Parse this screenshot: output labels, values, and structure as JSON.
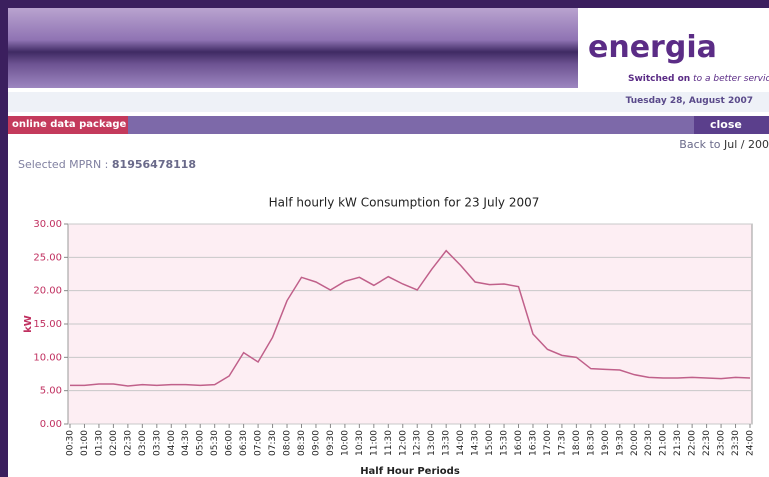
{
  "header": {
    "logo": "energia",
    "tagline_bold": "Switched on",
    "tagline_rest": "to a better service",
    "date": "Tuesday 28, August 2007"
  },
  "nav": {
    "tab": "online data package",
    "close": "close",
    "back_label": "Back to",
    "back_link": "Jul / 200"
  },
  "mprn": {
    "label": "Selected MPRN :",
    "value": "81956478118"
  },
  "chart_data": {
    "type": "line",
    "title": "Half hourly kW Consumption for 23 July 2007",
    "x_label": "Half Hour Periods",
    "y_label": "kW",
    "color": "#c0608a",
    "grid": true,
    "categories": [
      "00:30",
      "01:00",
      "01:30",
      "02:00",
      "02:30",
      "03:00",
      "03:30",
      "04:00",
      "04:30",
      "05:00",
      "05:30",
      "06:00",
      "06:30",
      "07:00",
      "07:30",
      "08:00",
      "08:30",
      "09:00",
      "09:30",
      "10:00",
      "10:30",
      "11:00",
      "11:30",
      "12:00",
      "12:30",
      "13:00",
      "13:30",
      "14:00",
      "14:30",
      "15:00",
      "15:30",
      "16:00",
      "16:30",
      "17:00",
      "17:30",
      "18:00",
      "18:30",
      "19:00",
      "19:30",
      "20:00",
      "20:30",
      "21:00",
      "21:30",
      "22:00",
      "22:30",
      "23:00",
      "23:30",
      "24:00"
    ],
    "values": [
      5.8,
      5.8,
      6.0,
      6.0,
      5.7,
      5.9,
      5.8,
      5.9,
      5.9,
      5.8,
      5.9,
      7.2,
      10.7,
      9.3,
      13.0,
      18.5,
      22.0,
      21.3,
      20.1,
      21.4,
      22.0,
      20.8,
      22.1,
      21.0,
      20.1,
      23.2,
      26.0,
      23.8,
      21.3,
      20.9,
      21.0,
      20.6,
      13.5,
      11.2,
      10.3,
      10.0,
      8.3,
      8.2,
      8.1,
      7.4,
      7.0,
      6.9,
      6.9,
      7.0,
      6.9,
      6.8,
      7.0,
      6.9
    ],
    "ylim": [
      0,
      30
    ],
    "yticks": [
      {
        "value": 0,
        "label": "0.00"
      },
      {
        "value": 5,
        "label": "5.00"
      },
      {
        "value": 10,
        "label": "10.00"
      },
      {
        "value": 15,
        "label": "15.00"
      },
      {
        "value": 20,
        "label": "20.00"
      },
      {
        "value": 25,
        "label": "25.00"
      },
      {
        "value": 30,
        "label": "30.00"
      }
    ]
  }
}
